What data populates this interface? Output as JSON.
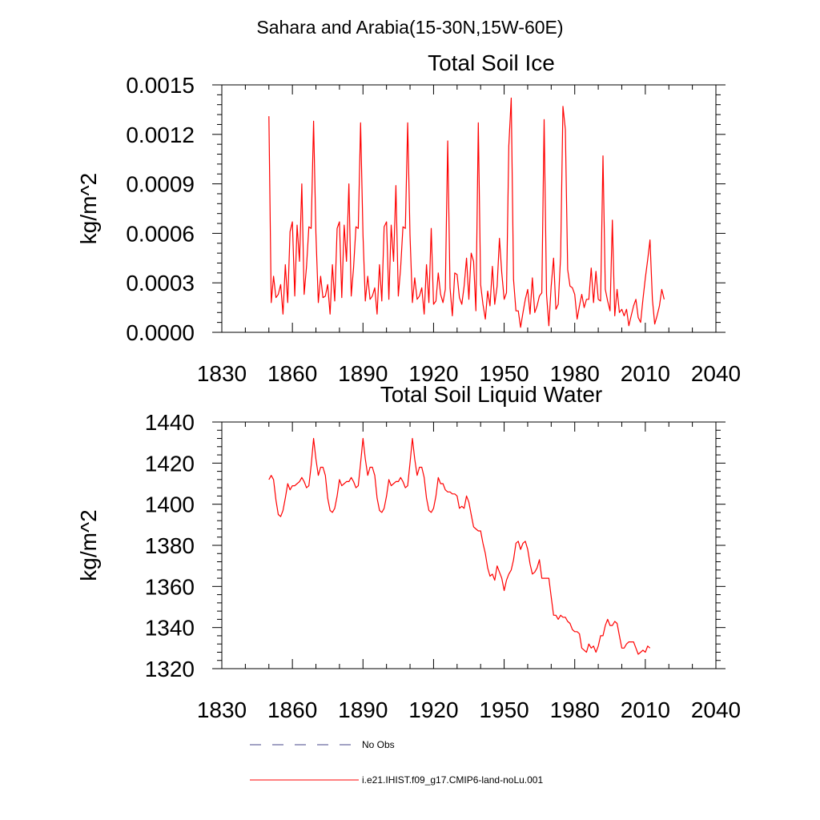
{
  "figure": {
    "supertitle": "Sahara and Arabia(15-30N,15W-60E)"
  },
  "chart_data": [
    {
      "type": "line",
      "title": "Total Soil Ice",
      "xlabel": "",
      "ylabel": "kg/m^2",
      "xlim": [
        1830,
        2040
      ],
      "ylim": [
        0.0,
        0.0015
      ],
      "xticks": [
        1830,
        1860,
        1890,
        1920,
        1950,
        1980,
        2010,
        2040
      ],
      "yticks": [
        0.0,
        0.0003,
        0.0006,
        0.0009,
        0.0012,
        0.0015
      ],
      "ytick_labels": [
        "0.0000",
        "0.0003",
        "0.0006",
        "0.0009",
        "0.0012",
        "0.0015"
      ],
      "grid": false,
      "series": [
        {
          "name": "i.e21.IHIST.f09_g17.CMIP6-land-noLu.001",
          "color": "#ff0000",
          "x_start": 1850,
          "x_step": 1,
          "values": [
            0.00131,
            0.00018,
            0.00034,
            0.00021,
            0.00023,
            0.00029,
            0.00011,
            0.00041,
            0.00018,
            0.00061,
            0.00067,
            0.00022,
            0.00065,
            0.00043,
            0.0009,
            0.00023,
            0.0004,
            0.00064,
            0.00063,
            0.00128,
            0.0006,
            0.00018,
            0.00034,
            0.00021,
            0.00022,
            0.00029,
            0.00011,
            0.00041,
            0.00019,
            0.00063,
            0.00067,
            0.00021,
            0.00065,
            0.00043,
            0.0009,
            0.00022,
            0.00039,
            0.00064,
            0.00063,
            0.00127,
            0.00059,
            0.00019,
            0.00034,
            0.0002,
            0.00022,
            0.00027,
            0.00011,
            0.00041,
            0.00019,
            0.00064,
            0.00067,
            0.0002,
            0.00065,
            0.00043,
            0.00089,
            0.00022,
            0.00039,
            0.00064,
            0.00063,
            0.00127,
            0.00059,
            0.00018,
            0.00033,
            0.0002,
            0.00022,
            0.00027,
            0.00011,
            0.00041,
            0.00018,
            0.00063,
            0.00017,
            0.00019,
            0.00036,
            0.00023,
            0.00018,
            0.00026,
            0.00116,
            0.00027,
            0.0001,
            0.00036,
            0.00035,
            0.00021,
            0.00017,
            0.00028,
            0.00045,
            0.0002,
            0.00048,
            0.00043,
            0.00013,
            0.00127,
            0.00029,
            0.00017,
            8e-05,
            0.00025,
            0.00016,
            0.0004,
            0.00017,
            0.00028,
            0.00057,
            0.00036,
            0.0002,
            0.00024,
            0.00113,
            0.00142,
            0.00032,
            0.00013,
            0.00013,
            3e-05,
            0.00012,
            0.0002,
            0.00026,
            0.00011,
            0.00033,
            0.00012,
            0.00016,
            0.00022,
            0.00024,
            0.00129,
            0.00023,
            4e-05,
            0.00028,
            0.00045,
            0.00014,
            0.00017,
            0.00046,
            0.00137,
            0.00123,
            0.00038,
            0.00028,
            0.00027,
            0.00023,
            8e-05,
            0.00016,
            0.00023,
            0.00015,
            0.0002,
            0.0002,
            0.00039,
            0.00018,
            0.00037,
            0.0002,
            0.00019,
            0.00107,
            0.00026,
            0.00019,
            0.00013,
            0.00068,
            0.0001,
            0.00026,
            0.00012,
            0.00014,
            0.0001,
            0.00014,
            4e-05,
            0.0001,
            0.00016,
            0.0002,
            9e-05,
            6e-05,
            0.0002,
            0.00033,
            0.00044,
            0.00056,
            0.0002,
            5e-05,
            0.0001,
            0.00016,
            0.00026,
            0.0002
          ]
        }
      ]
    },
    {
      "type": "line",
      "title": "Total Soil Liquid Water",
      "xlabel": "",
      "ylabel": "kg/m^2",
      "xlim": [
        1830,
        2040
      ],
      "ylim": [
        1320,
        1440
      ],
      "xticks": [
        1830,
        1860,
        1890,
        1920,
        1950,
        1980,
        2010,
        2040
      ],
      "yticks": [
        1320,
        1340,
        1360,
        1380,
        1400,
        1420,
        1440
      ],
      "ytick_labels": [
        "1320",
        "1340",
        "1360",
        "1380",
        "1400",
        "1420",
        "1440"
      ],
      "grid": false,
      "series": [
        {
          "name": "i.e21.IHIST.f09_g17.CMIP6-land-noLu.001",
          "color": "#ff0000",
          "x_start": 1850,
          "x_step": 1,
          "values": [
            1412,
            1414,
            1412,
            1402,
            1395,
            1394,
            1397,
            1403,
            1410,
            1407,
            1409,
            1409,
            1410,
            1411,
            1413,
            1411,
            1408,
            1409,
            1419,
            1432,
            1422,
            1414,
            1418,
            1418,
            1414,
            1403,
            1397,
            1396,
            1398,
            1404,
            1412,
            1409,
            1410,
            1411,
            1411,
            1413,
            1411,
            1408,
            1409,
            1420,
            1432,
            1422,
            1414,
            1418,
            1418,
            1414,
            1403,
            1397,
            1396,
            1398,
            1404,
            1412,
            1409,
            1410,
            1411,
            1411,
            1413,
            1411,
            1408,
            1409,
            1420,
            1432,
            1422,
            1414,
            1418,
            1418,
            1413,
            1403,
            1397,
            1396,
            1398,
            1404,
            1413,
            1410,
            1410,
            1407,
            1406,
            1406,
            1405,
            1405,
            1404,
            1398,
            1399,
            1398,
            1404,
            1401,
            1395,
            1389,
            1388,
            1387,
            1387,
            1381,
            1376,
            1369,
            1365,
            1366,
            1363,
            1370,
            1367,
            1364,
            1358,
            1363,
            1366,
            1368,
            1373,
            1381,
            1382,
            1378,
            1381,
            1382,
            1378,
            1371,
            1366,
            1367,
            1369,
            1373,
            1364,
            1364,
            1364,
            1364,
            1355,
            1346,
            1346,
            1344,
            1346,
            1345,
            1345,
            1343,
            1342,
            1339,
            1338,
            1338,
            1337,
            1330,
            1329,
            1328,
            1332,
            1330,
            1331,
            1328,
            1331,
            1336,
            1336,
            1341,
            1344,
            1341,
            1341,
            1343,
            1342,
            1336,
            1330,
            1330,
            1332,
            1333,
            1333,
            1333,
            1330,
            1327,
            1328,
            1329,
            1328,
            1331,
            1330
          ]
        }
      ]
    }
  ],
  "legend": {
    "entries": [
      {
        "label": "No Obs",
        "style": "dashed",
        "color": "#44448a"
      },
      {
        "label": "i.e21.IHIST.f09_g17.CMIP6-land-noLu.001",
        "style": "solid",
        "color": "#ff0000"
      }
    ]
  }
}
